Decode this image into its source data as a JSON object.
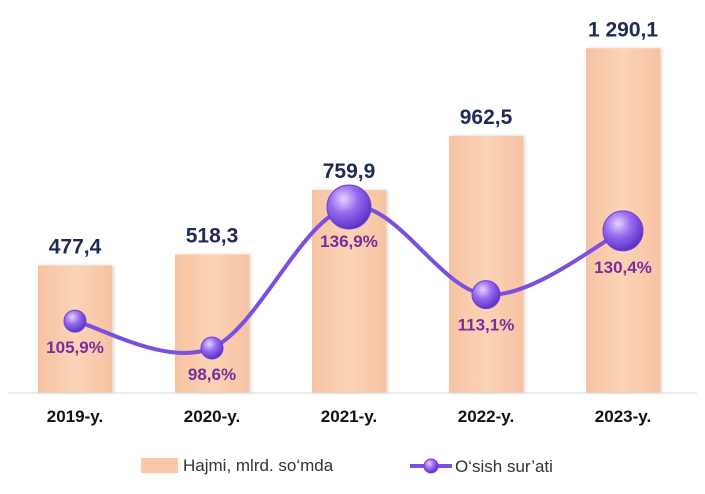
{
  "chart_data": {
    "type": "bar",
    "categories": [
      "2019-y.",
      "2020-y.",
      "2021-y.",
      "2022-y.",
      "2023-y."
    ],
    "series": [
      {
        "name": "Hajmi, mlrd. so‘mda",
        "type": "bar",
        "values": [
          477.4,
          518.3,
          759.9,
          962.5,
          1290.1
        ],
        "labels": [
          "477,4",
          "518,3",
          "759,9",
          "962,5",
          "1 290,1"
        ],
        "color": "#f8c8a8"
      },
      {
        "name": "O‘sish sur’ati",
        "type": "line",
        "values": [
          105.9,
          98.6,
          136.9,
          113.1,
          130.4
        ],
        "labels": [
          "105,9%",
          "98,6%",
          "136,9%",
          "113,1%",
          "130,4%"
        ],
        "color": "#7b4fe0"
      }
    ],
    "legend": "bottom",
    "grid": false
  }
}
